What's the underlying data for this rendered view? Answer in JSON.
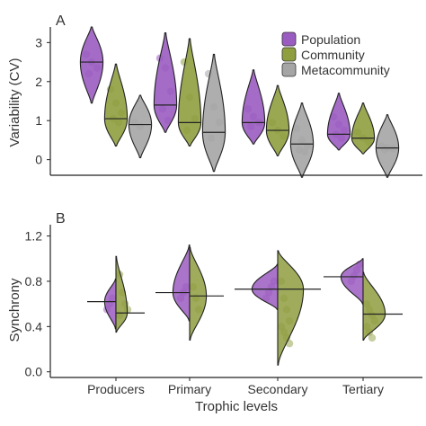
{
  "colors": {
    "population": "#9a5cc0",
    "community": "#8f9e3f",
    "metacommunity": "#a5a5a5"
  },
  "chart_data": [
    {
      "panel": "A",
      "type": "violin",
      "xlabel": "",
      "ylabel": "Variability (CV)",
      "ylim": [
        -0.4,
        3.4
      ],
      "yticks": [
        0,
        1,
        2,
        3
      ],
      "grid": false,
      "categories": [
        "Producers",
        "Primary",
        "Secondary",
        "Tertiary"
      ],
      "legend": {
        "placement": "top-right",
        "entries": [
          "Population",
          "Community",
          "Metacommunity"
        ]
      },
      "series": [
        {
          "name": "Population",
          "color_key": "population",
          "values": [
            {
              "category": "Producers",
              "median": 2.5,
              "range": [
                1.45,
                3.4
              ]
            },
            {
              "category": "Primary",
              "median": 1.4,
              "range": [
                0.7,
                3.25
              ]
            },
            {
              "category": "Secondary",
              "median": 0.95,
              "range": [
                0.4,
                2.3
              ]
            },
            {
              "category": "Tertiary",
              "median": 0.65,
              "range": [
                0.25,
                1.7
              ]
            }
          ],
          "points": [
            {
              "category": "Producers",
              "y": [
                2.7,
                2.5,
                2.35,
                2.2
              ]
            },
            {
              "category": "Primary",
              "y": [
                2.6,
                2.35,
                1.75,
                1.3,
                1.0
              ]
            },
            {
              "category": "Secondary",
              "y": [
                1.3,
                1.1,
                0.95,
                0.85
              ]
            },
            {
              "category": "Tertiary",
              "y": [
                1.1,
                0.9,
                0.75,
                0.65,
                0.55
              ]
            }
          ]
        },
        {
          "name": "Community",
          "color_key": "community",
          "values": [
            {
              "category": "Producers",
              "median": 1.05,
              "range": [
                0.35,
                2.45
              ]
            },
            {
              "category": "Primary",
              "median": 0.95,
              "range": [
                0.35,
                3.1
              ]
            },
            {
              "category": "Secondary",
              "median": 0.75,
              "range": [
                0.1,
                1.9
              ]
            },
            {
              "category": "Tertiary",
              "median": 0.55,
              "range": [
                0.15,
                1.45
              ]
            }
          ],
          "points": [
            {
              "category": "Producers",
              "y": [
                1.8,
                1.45,
                1.2,
                1.05,
                0.95
              ]
            },
            {
              "category": "Primary",
              "y": [
                2.5,
                1.6,
                1.05,
                0.75
              ]
            },
            {
              "category": "Secondary",
              "y": [
                0.95,
                0.75,
                0.6
              ]
            },
            {
              "category": "Tertiary",
              "y": [
                0.7,
                0.55,
                0.45
              ]
            }
          ]
        },
        {
          "name": "Metacommunity",
          "color_key": "metacommunity",
          "values": [
            {
              "category": "Producers",
              "median": 0.9,
              "range": [
                0.05,
                1.65
              ]
            },
            {
              "category": "Primary",
              "median": 0.7,
              "range": [
                -0.3,
                2.7
              ]
            },
            {
              "category": "Secondary",
              "median": 0.4,
              "range": [
                -0.45,
                1.45
              ]
            },
            {
              "category": "Tertiary",
              "median": 0.3,
              "range": [
                -0.45,
                1.15
              ]
            }
          ],
          "points": [
            {
              "category": "Producers",
              "y": [
                0.95,
                0.85
              ]
            },
            {
              "category": "Primary",
              "y": [
                2.2,
                1.35,
                0.95,
                0.55
              ]
            },
            {
              "category": "Secondary",
              "y": [
                0.8,
                0.5,
                0.35,
                0.25,
                0.2
              ]
            },
            {
              "category": "Tertiary",
              "y": [
                0.35,
                0.3,
                0.28,
                0.25
              ]
            }
          ]
        }
      ]
    },
    {
      "panel": "B",
      "type": "split-violin",
      "xlabel": "Trophic levels",
      "ylabel": "Synchrony",
      "ylim": [
        -0.05,
        1.3
      ],
      "yticks": [
        0.0,
        0.4,
        0.8,
        1.2
      ],
      "yticklabels": [
        "0.0",
        "0.4",
        "0.8",
        "1.2"
      ],
      "grid": false,
      "categories": [
        "Producers",
        "Primary",
        "Secondary",
        "Tertiary"
      ],
      "series": [
        {
          "name": "Population",
          "color_key": "population",
          "side": "left",
          "values": [
            {
              "category": "Producers",
              "median": 0.62,
              "range": [
                0.38,
                0.82
              ]
            },
            {
              "category": "Primary",
              "median": 0.7,
              "range": [
                0.45,
                1.12
              ]
            },
            {
              "category": "Secondary",
              "median": 0.73,
              "range": [
                0.55,
                0.95
              ]
            },
            {
              "category": "Tertiary",
              "median": 0.84,
              "range": [
                0.6,
                1.0
              ]
            }
          ],
          "points": [
            {
              "category": "Producers",
              "y": [
                0.65,
                0.6,
                0.55
              ]
            },
            {
              "category": "Primary",
              "y": [
                0.75,
                0.7,
                0.65
              ]
            },
            {
              "category": "Secondary",
              "y": [
                0.8,
                0.75,
                0.7,
                0.65
              ]
            },
            {
              "category": "Tertiary",
              "y": [
                0.95,
                0.9,
                0.85,
                0.8
              ]
            }
          ]
        },
        {
          "name": "Community",
          "color_key": "community",
          "side": "right",
          "values": [
            {
              "category": "Producers",
              "median": 0.52,
              "range": [
                0.35,
                1.02
              ]
            },
            {
              "category": "Primary",
              "median": 0.67,
              "range": [
                0.28,
                1.1
              ]
            },
            {
              "category": "Secondary",
              "median": 0.73,
              "range": [
                0.06,
                1.07
              ]
            },
            {
              "category": "Tertiary",
              "median": 0.51,
              "range": [
                0.28,
                0.88
              ]
            }
          ],
          "points": [
            {
              "category": "Producers",
              "y": [
                0.86,
                0.7,
                0.6,
                0.55,
                0.5
              ]
            },
            {
              "category": "Primary",
              "y": [
                0.75,
                0.65,
                0.55
              ]
            },
            {
              "category": "Secondary",
              "y": [
                0.8,
                0.65,
                0.55,
                0.45,
                0.4,
                0.35,
                0.3,
                0.25
              ]
            },
            {
              "category": "Tertiary",
              "y": [
                0.6,
                0.55,
                0.5,
                0.45,
                0.4,
                0.35,
                0.3
              ]
            }
          ]
        }
      ]
    }
  ]
}
